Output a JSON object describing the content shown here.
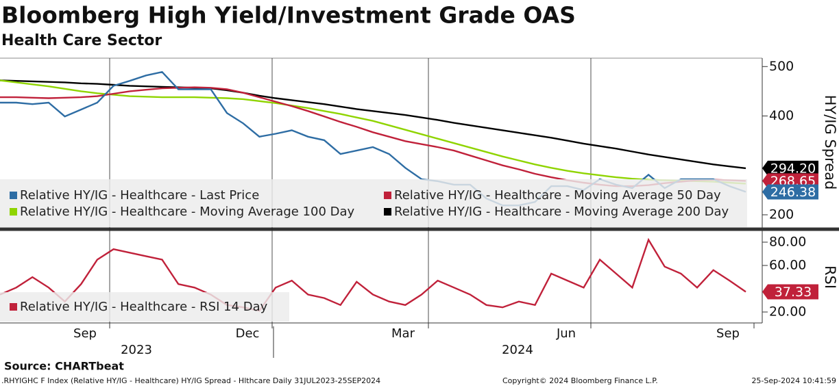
{
  "chart_data": [
    {
      "type": "line",
      "title": "Bloomberg High Yield/Investment Grade OAS",
      "subtitle": "Health Care Sector",
      "y_label": "HY/IG Spread",
      "ylim": [
        175,
        517
      ],
      "yticks": [
        200,
        400,
        500
      ],
      "series": [
        {
          "name": "Relative HY/IG - Healthcare - Last Price",
          "color": "#2e6da4",
          "end_label": "246.38",
          "values": [
            427,
            427,
            424,
            427,
            399,
            413,
            427,
            461,
            471,
            482,
            489,
            454,
            454,
            454,
            406,
            385,
            358,
            364,
            371,
            358,
            351,
            323,
            330,
            337,
            323,
            295,
            272,
            268,
            261,
            261,
            233,
            219,
            219,
            226,
            258,
            258,
            250,
            272,
            261,
            254,
            281,
            254,
            272,
            272,
            272,
            258,
            246.38
          ]
        },
        {
          "name": "Relative HY/IG - Healthcare - Moving Average 50 Day",
          "color": "#c0213a",
          "end_label": "268.65",
          "values": [
            438,
            438,
            437,
            436,
            437,
            438,
            440,
            445,
            450,
            453,
            456,
            457,
            458,
            457,
            454,
            447,
            438,
            429,
            420,
            410,
            399,
            388,
            378,
            367,
            358,
            349,
            343,
            337,
            330,
            320,
            310,
            300,
            292,
            283,
            276,
            270,
            265,
            261,
            258,
            258,
            260,
            264,
            267,
            270,
            271,
            270,
            268.65
          ]
        },
        {
          "name": "Relative HY/IG - Healthcare - Moving Average 100 Day",
          "color": "#8fd400",
          "values": [
            472,
            468,
            464,
            460,
            455,
            450,
            446,
            443,
            440,
            439,
            438,
            438,
            438,
            437,
            436,
            434,
            430,
            426,
            421,
            416,
            410,
            404,
            397,
            390,
            381,
            372,
            363,
            354,
            345,
            336,
            327,
            318,
            310,
            302,
            295,
            289,
            284,
            280,
            276,
            273,
            271,
            270,
            269,
            268,
            267,
            265,
            263
          ]
        },
        {
          "name": "Relative HY/IG - Healthcare - Moving Average 200 Day",
          "color": "#000000",
          "end_label": "294.20",
          "values": [
            472,
            471,
            470,
            469,
            468,
            466,
            465,
            463,
            461,
            460,
            459,
            458,
            457,
            456,
            452,
            447,
            441,
            436,
            432,
            428,
            424,
            419,
            414,
            410,
            406,
            402,
            397,
            392,
            386,
            381,
            376,
            371,
            366,
            361,
            356,
            350,
            344,
            339,
            334,
            328,
            322,
            317,
            312,
            307,
            302,
            298,
            294.2
          ]
        }
      ]
    },
    {
      "type": "line",
      "y_label": "RSI",
      "ylim": [
        10.6,
        88.2
      ],
      "yticks": [
        {
          "value": 20,
          "label": "20.00"
        },
        {
          "value": 60,
          "label": "60.00"
        },
        {
          "value": 80,
          "label": "80.00"
        }
      ],
      "x_labels": [
        "Sep",
        "Dec",
        "Mar",
        "Jun",
        "Sep"
      ],
      "year_labels": [
        "2023",
        "2024"
      ],
      "series": [
        {
          "name": "Relative HY/IG - Healthcare - RSI 14 Day",
          "color": "#c0213a",
          "end_label": "37.33",
          "values": [
            35,
            41,
            50,
            41,
            29,
            44,
            65,
            74,
            71,
            68,
            65,
            44,
            41,
            35,
            26,
            24,
            21,
            41,
            47,
            35,
            32,
            26,
            46,
            35,
            29,
            26,
            35,
            47,
            41,
            35,
            26,
            24,
            29,
            26,
            53,
            47,
            41,
            65,
            53,
            41,
            82,
            59,
            53,
            41,
            56,
            47,
            37.33
          ]
        }
      ]
    }
  ],
  "source": "Source: CHARTbeat",
  "footer": {
    "left": ".RHYIGHC F Index (Relative HY/IG - Healthcare) HY/IG Spread - Hlthcare  Daily 31JUL2023-25SEP2024",
    "center": "Copyright© 2024 Bloomberg Finance L.P.",
    "right": "25-Sep-2024 10:41:59"
  }
}
